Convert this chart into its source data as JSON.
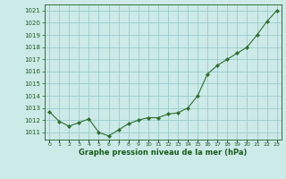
{
  "x": [
    0,
    1,
    2,
    3,
    4,
    5,
    6,
    7,
    8,
    9,
    10,
    11,
    12,
    13,
    14,
    15,
    16,
    17,
    18,
    19,
    20,
    21,
    22,
    23
  ],
  "y": [
    1012.7,
    1011.9,
    1011.5,
    1011.8,
    1012.1,
    1011.0,
    1010.7,
    1011.2,
    1011.7,
    1012.0,
    1012.2,
    1012.2,
    1012.5,
    1012.6,
    1013.0,
    1014.0,
    1015.8,
    1016.5,
    1017.0,
    1017.5,
    1018.0,
    1019.0,
    1020.1,
    1021.0
  ],
  "line_color": "#2d6e2d",
  "marker": "D",
  "marker_size": 2.2,
  "bg_color": "#cceae8",
  "grid_color": "#99cccc",
  "xlabel": "Graphe pression niveau de la mer (hPa)",
  "xlabel_color": "#1a5c1a",
  "tick_color": "#1a5c1a",
  "ylim": [
    1010.4,
    1021.5
  ],
  "xlim": [
    -0.5,
    23.5
  ],
  "yticks": [
    1011,
    1012,
    1013,
    1014,
    1015,
    1016,
    1017,
    1018,
    1019,
    1020,
    1021
  ],
  "xtick_labels": [
    "0",
    "1",
    "2",
    "3",
    "4",
    "5",
    "6",
    "7",
    "8",
    "9",
    "10",
    "11",
    "12",
    "13",
    "14",
    "15",
    "16",
    "17",
    "18",
    "19",
    "20",
    "21",
    "22",
    "23"
  ]
}
